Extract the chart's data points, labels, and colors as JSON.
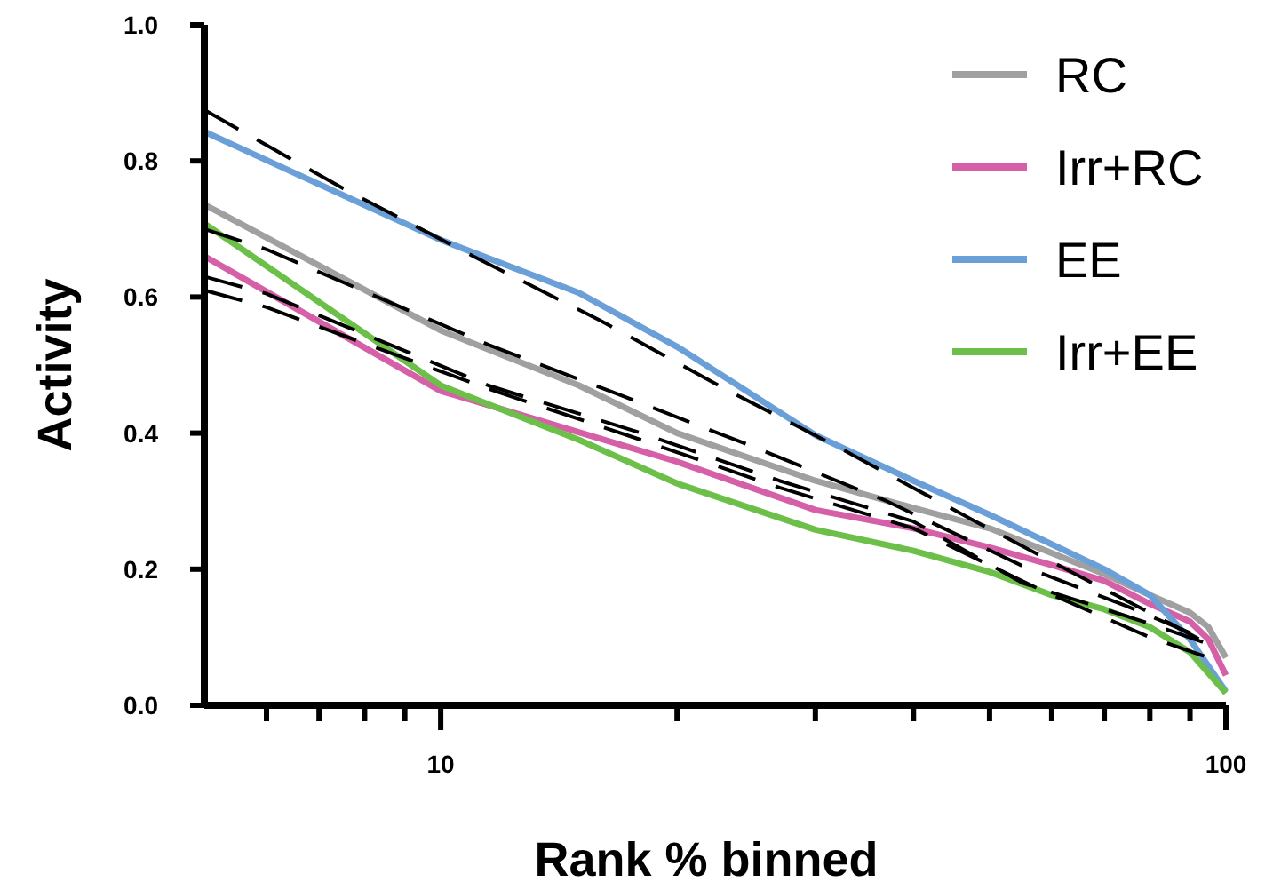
{
  "chart_data": {
    "type": "line",
    "xlabel": "Rank % binned",
    "ylabel": "Activity",
    "log": "x",
    "xlim": [
      5,
      100
    ],
    "ylim": [
      0,
      1
    ],
    "xticks": [
      {
        "value": 6,
        "label": null
      },
      {
        "value": 7,
        "label": null
      },
      {
        "value": 8,
        "label": null
      },
      {
        "value": 9,
        "label": null
      },
      10,
      {
        "value": 20,
        "label": null
      },
      {
        "value": 30,
        "label": null
      },
      {
        "value": 40,
        "label": null
      },
      {
        "value": 50,
        "label": null
      },
      {
        "value": 60,
        "label": null
      },
      {
        "value": 70,
        "label": null
      },
      {
        "value": 80,
        "label": null
      },
      {
        "value": 90,
        "label": null
      },
      100
    ],
    "yticks": [
      {
        "value": 0,
        "label": "0.0"
      },
      {
        "value": 0.2,
        "label": "0.2"
      },
      {
        "value": 0.4,
        "label": "0.4"
      },
      {
        "value": 0.6,
        "label": "0.6"
      },
      {
        "value": 0.8,
        "label": "0.8"
      },
      {
        "value": 1,
        "label": "1.0"
      }
    ],
    "grid": false,
    "legend": "top right",
    "marker": "none",
    "series": [
      {
        "name": "RC",
        "color": "#a0a0a0",
        "line_style": "solid",
        "x": [
          5,
          10,
          15,
          20,
          30,
          40,
          50,
          70,
          80,
          90,
          95,
          100
        ],
        "values": [
          0.736,
          0.551,
          0.47,
          0.4,
          0.33,
          0.29,
          0.26,
          0.193,
          0.162,
          0.136,
          0.115,
          0.07
        ]
      },
      {
        "name": "Irr+RC",
        "color": "#d660a8",
        "line_style": "solid",
        "x": [
          5,
          10,
          20,
          30,
          40,
          50,
          60,
          70,
          80,
          90,
          95,
          100
        ],
        "values": [
          0.66,
          0.462,
          0.358,
          0.287,
          0.26,
          0.232,
          0.206,
          0.183,
          0.149,
          0.123,
          0.097,
          0.044
        ]
      },
      {
        "name": "EE",
        "color": "#6a9fd8",
        "line_style": "solid",
        "x": [
          5,
          10,
          15,
          20,
          30,
          40,
          50,
          70,
          80,
          90,
          100
        ],
        "values": [
          0.843,
          0.684,
          0.606,
          0.527,
          0.397,
          0.33,
          0.28,
          0.2,
          0.162,
          0.097,
          0.02
        ]
      },
      {
        "name": "Irr+EE",
        "color": "#6cc04a",
        "line_style": "solid",
        "x": [
          5,
          10,
          15,
          20,
          30,
          40,
          50,
          60,
          70,
          80,
          90,
          100
        ],
        "values": [
          0.708,
          0.47,
          0.39,
          0.326,
          0.258,
          0.227,
          0.196,
          0.162,
          0.141,
          0.115,
          0.078,
          0.018
        ]
      },
      {
        "color": "#000000",
        "line_style": "dashed",
        "x": [
          5,
          7.5,
          11,
          16,
          23,
          32,
          48,
          65,
          85,
          95
        ],
        "values": [
          0.875,
          0.76,
          0.66,
          0.565,
          0.465,
          0.38,
          0.27,
          0.19,
          0.12,
          0.09
        ]
      },
      {
        "color": "#000000",
        "line_style": "dashed",
        "x": [
          5,
          6,
          11.5,
          17,
          25,
          37,
          55,
          75,
          95
        ],
        "values": [
          0.7,
          0.67,
          0.53,
          0.455,
          0.38,
          0.3,
          0.205,
          0.145,
          0.095
        ]
      },
      {
        "color": "#000000",
        "line_style": "dashed",
        "x": [
          5,
          6,
          11.5,
          18,
          27,
          40,
          55,
          80,
          95
        ],
        "values": [
          0.63,
          0.605,
          0.47,
          0.4,
          0.33,
          0.27,
          0.18,
          0.12,
          0.09
        ]
      },
      {
        "color": "#000000",
        "line_style": "dashed",
        "x": [
          5,
          6,
          11.5,
          18,
          27,
          40,
          58,
          80,
          95
        ],
        "values": [
          0.61,
          0.585,
          0.465,
          0.39,
          0.32,
          0.26,
          0.17,
          0.1,
          0.07
        ]
      }
    ]
  }
}
